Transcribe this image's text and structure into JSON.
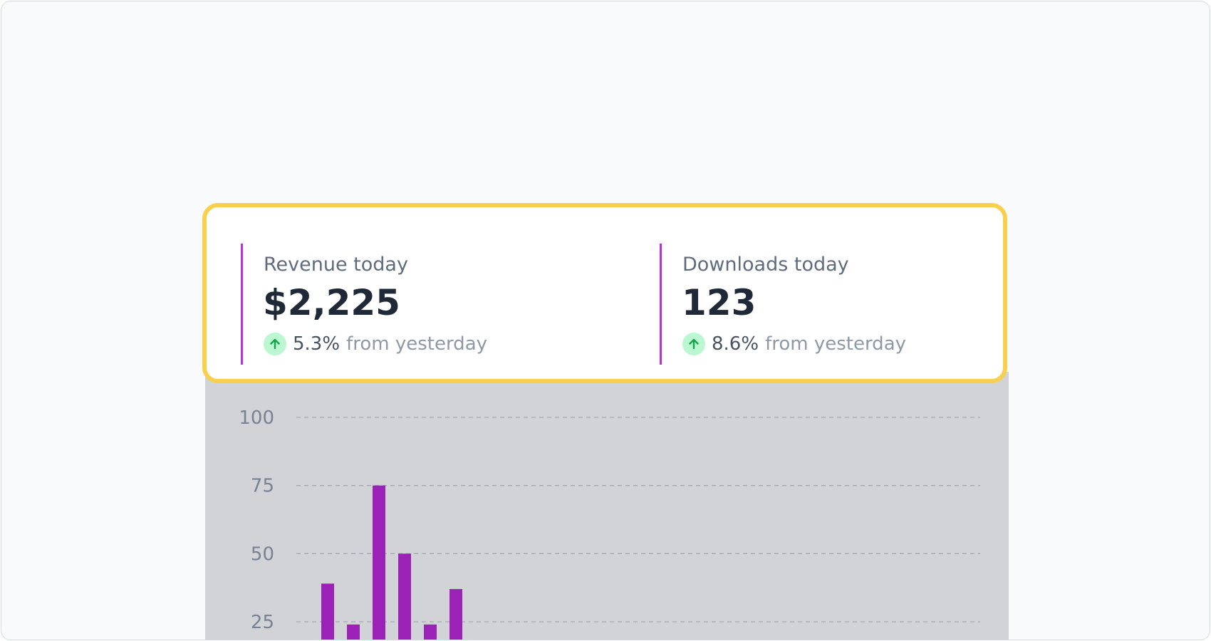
{
  "stats": [
    {
      "label": "Revenue today",
      "value": "$2,225",
      "change": "5.3%",
      "change_suffix": "from yesterday",
      "trend_icon": "arrow-up-icon"
    },
    {
      "label": "Downloads today",
      "value": "123",
      "change": "8.6%",
      "change_suffix": "from yesterday",
      "trend_icon": "arrow-up-icon"
    }
  ],
  "colors": {
    "accent": "#9c21b6",
    "card_highlight": "#f8d04d",
    "trend_up": "#16a34a",
    "trend_up_bg": "#bbf7d0"
  },
  "chart_data": {
    "type": "bar",
    "ticks": [
      100,
      75,
      50,
      25
    ],
    "ylim": [
      0,
      100
    ],
    "values": [
      39,
      24,
      75,
      50,
      24,
      37
    ],
    "grid": true,
    "note": "only the top portion of the chart is visible"
  }
}
